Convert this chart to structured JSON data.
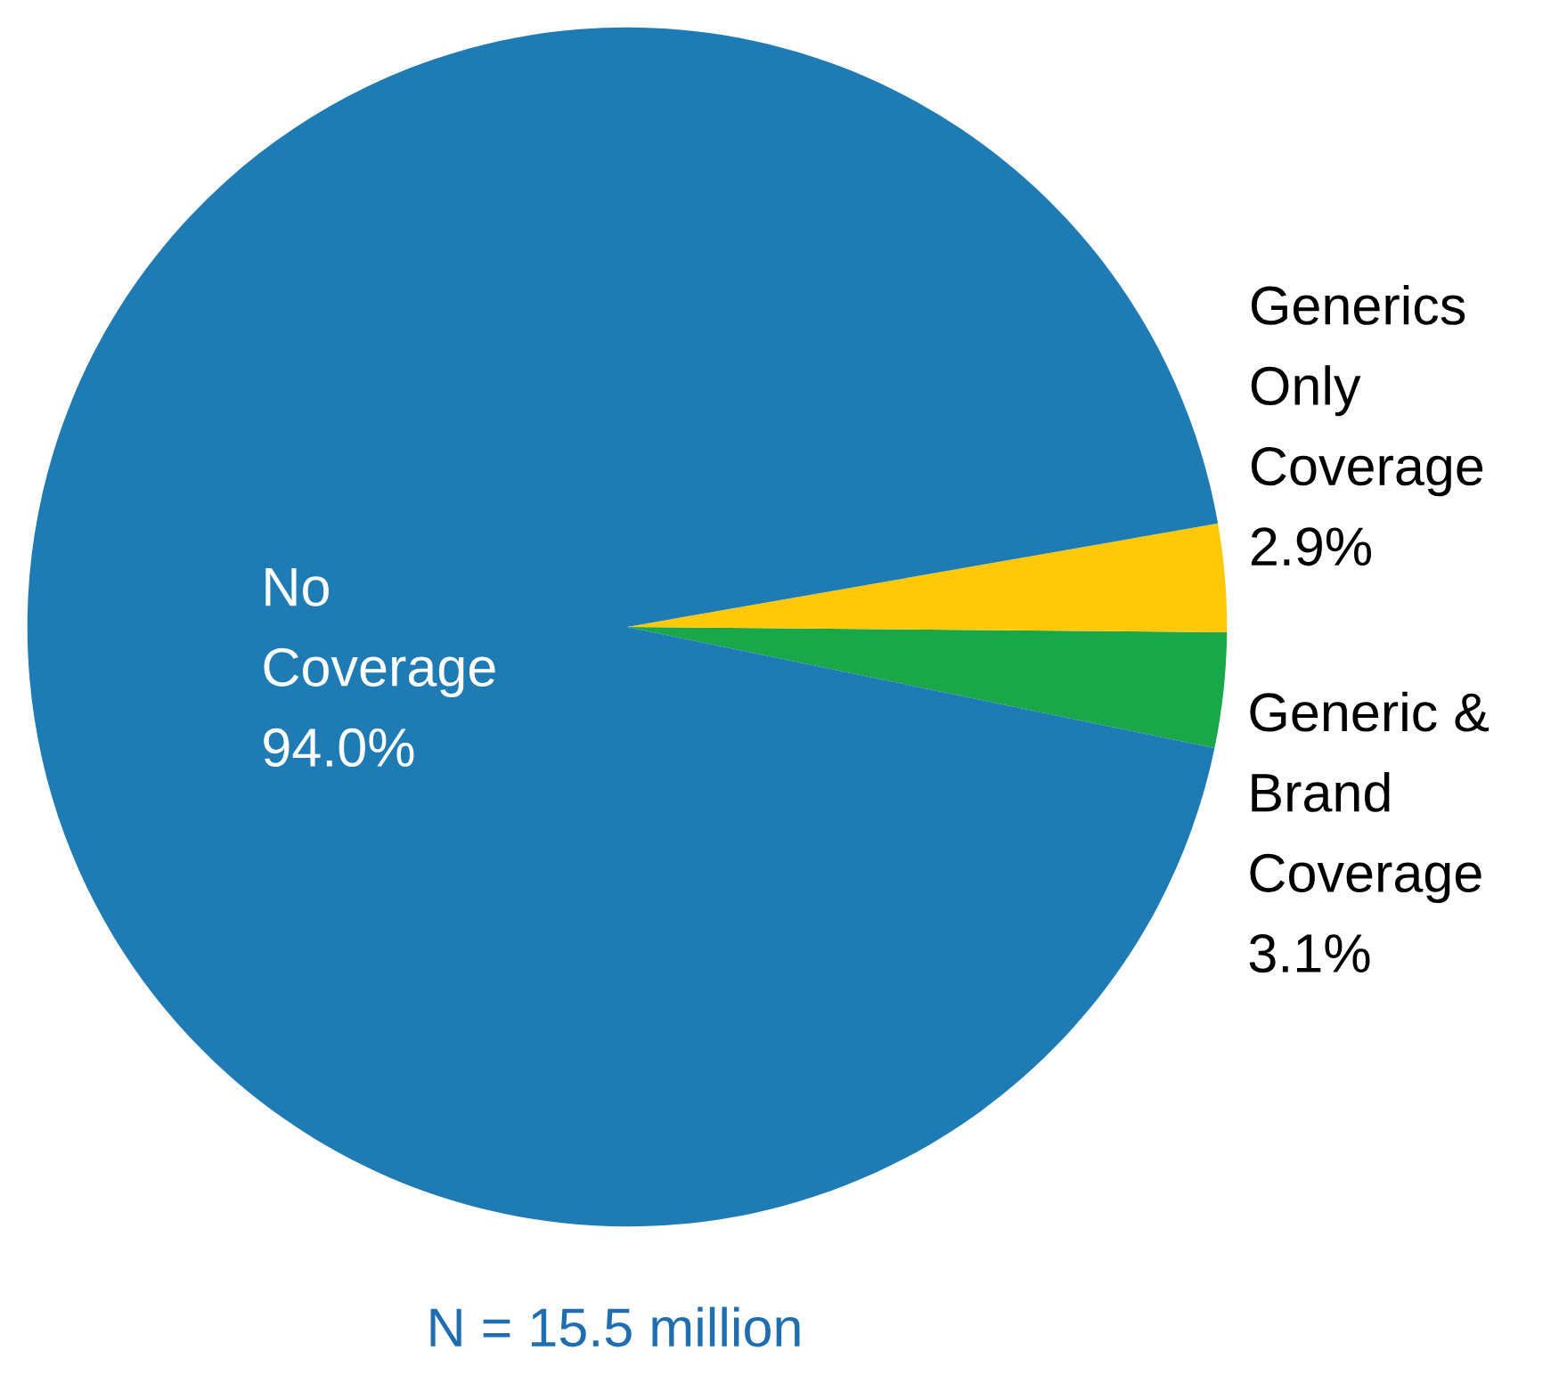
{
  "chart_data": {
    "type": "pie",
    "categories": [
      "Generic & Brand Coverage",
      "Generics Only Coverage",
      "No Coverage"
    ],
    "values": [
      3.1,
      2.9,
      94.0
    ],
    "colors": [
      "#19a74a",
      "#ffc90a",
      "#1f7bb4"
    ],
    "value_labels": [
      "3.1%",
      "2.9%",
      "94.0%"
    ],
    "annotations": [
      "N = 15.5 million"
    ],
    "legend": false
  }
}
